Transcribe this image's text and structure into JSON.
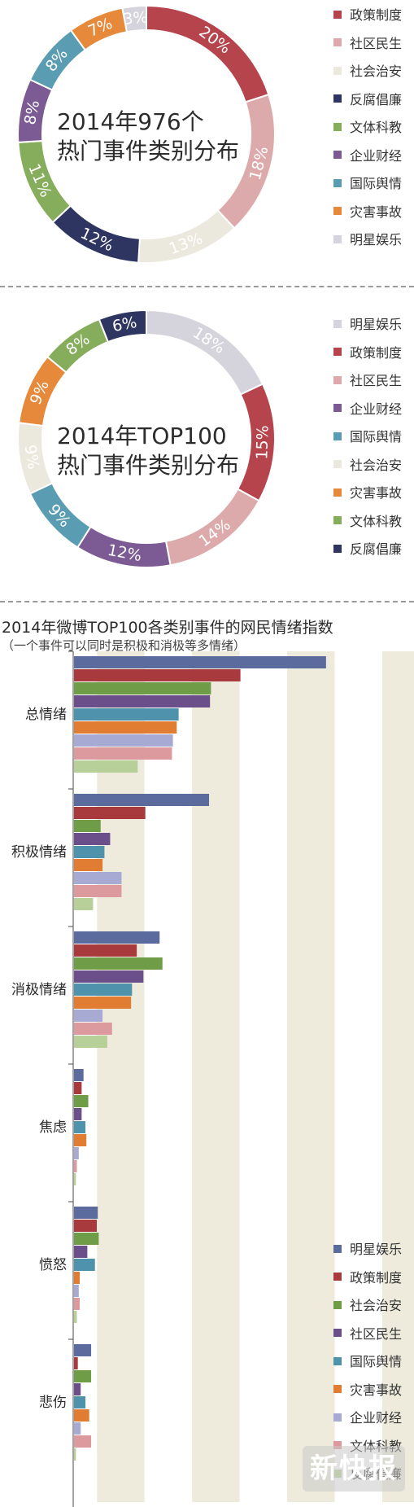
{
  "chart_data": [
    {
      "type": "pie",
      "title_lines": [
        "2014年976个",
        "热门事件类别分布"
      ],
      "categories": [
        "政策制度",
        "社区民生",
        "社会治安",
        "反腐倡廉",
        "文体科教",
        "企业财经",
        "国际舆情",
        "灾害事故",
        "明星娱乐"
      ],
      "values": [
        20,
        18,
        13,
        12,
        11,
        8,
        8,
        7,
        3
      ],
      "labels": [
        "20%",
        "18%",
        "13%",
        "12%",
        "11%",
        "8%",
        "8%",
        "7%",
        "3%"
      ],
      "colors": [
        "#b5444d",
        "#ddaaab",
        "#ebe8dd",
        "#2e3561",
        "#86ad5b",
        "#7c5a94",
        "#5a9db2",
        "#e6893b",
        "#d5d3dc"
      ],
      "legend_position": "right"
    },
    {
      "type": "pie",
      "title_lines": [
        "2014年TOP100",
        "热门事件类别分布"
      ],
      "categories": [
        "明星娱乐",
        "政策制度",
        "社区民生",
        "企业财经",
        "国际舆情",
        "社会治安",
        "灾害事故",
        "文体科教",
        "反腐倡廉"
      ],
      "values": [
        18,
        15,
        14,
        12,
        9,
        9,
        9,
        8,
        6
      ],
      "labels": [
        "18%",
        "15%",
        "14%",
        "12%",
        "9%",
        "9%",
        "9%",
        "8%",
        "6%"
      ],
      "colors": [
        "#d5d3dc",
        "#b5444d",
        "#ddaaab",
        "#7c5a94",
        "#5a9db2",
        "#ebe8dd",
        "#e6893b",
        "#86ad5b",
        "#2e3561"
      ],
      "legend_position": "right"
    },
    {
      "type": "bar",
      "orientation": "horizontal",
      "title": "2014年微博TOP100各类别事件的网民情绪指数",
      "subtitle": "（一个事件可以同时是积极和消极等多情绪）",
      "categories": [
        "总情绪",
        "积极情绪",
        "消极情绪",
        "焦虑",
        "愤怒",
        "悲伤"
      ],
      "series": [
        {
          "name": "明星娱乐",
          "color": "#5b6b9e",
          "values": [
            2.65,
            1.42,
            0.9,
            0.1,
            0.25,
            0.18
          ]
        },
        {
          "name": "政策制度",
          "color": "#a8393d",
          "values": [
            1.75,
            0.75,
            0.66,
            0.08,
            0.24,
            0.04
          ]
        },
        {
          "name": "社会治安",
          "color": "#6e9c47",
          "values": [
            1.44,
            0.28,
            0.93,
            0.15,
            0.26,
            0.18
          ]
        },
        {
          "name": "社区民生",
          "color": "#6b4f8a",
          "values": [
            1.43,
            0.38,
            0.73,
            0.08,
            0.14,
            0.07
          ]
        },
        {
          "name": "国际舆情",
          "color": "#4e93ab",
          "values": [
            1.1,
            0.32,
            0.61,
            0.12,
            0.22,
            0.12
          ]
        },
        {
          "name": "灾害事故",
          "color": "#e07d33",
          "values": [
            1.08,
            0.3,
            0.6,
            0.13,
            0.06,
            0.16
          ]
        },
        {
          "name": "企业财经",
          "color": "#a7abd3",
          "values": [
            1.04,
            0.5,
            0.3,
            0.05,
            0.05,
            0.07
          ]
        },
        {
          "name": "文体科教",
          "color": "#dc9a9e",
          "values": [
            1.03,
            0.5,
            0.4,
            0.03,
            0.06,
            0.18
          ]
        },
        {
          "name": "反腐倡廉",
          "color": "#b7cf98",
          "values": [
            0.67,
            0.2,
            0.35,
            0.02,
            0.03,
            0.02
          ]
        }
      ],
      "xlim": [
        0,
        3.25
      ],
      "grid_bands": true,
      "legend_position": "bottom-right"
    }
  ],
  "watermark": "新快报"
}
